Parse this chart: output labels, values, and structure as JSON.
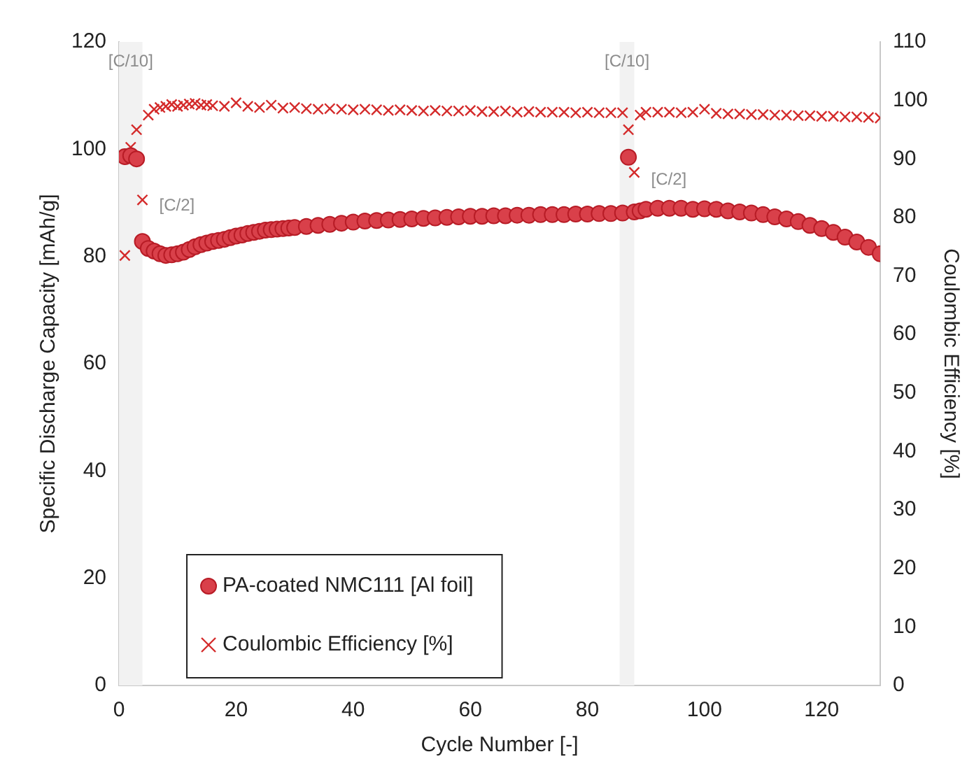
{
  "chart_data": {
    "type": "scatter",
    "xlabel": "Cycle Number [-]",
    "ylabel": "Specific Discharge Capacity [mAh/g]",
    "y2label": "Coulombic Efficiency [%]",
    "xlim": [
      0,
      130
    ],
    "xticks": [
      0,
      20,
      40,
      60,
      80,
      100,
      120
    ],
    "ylim": [
      0,
      120
    ],
    "yticks": [
      0,
      20,
      40,
      60,
      80,
      100,
      120
    ],
    "y2lim": [
      0,
      110
    ],
    "y2ticks": [
      0,
      10,
      20,
      30,
      40,
      50,
      60,
      70,
      80,
      90,
      100,
      110
    ],
    "legend": "bottom left",
    "bands": [
      {
        "axis": "x",
        "from": 0,
        "to": 4,
        "label": "[C/10]",
        "color": "#f2f2f2"
      },
      {
        "axis": "x",
        "from": 85.5,
        "to": 88,
        "label": "[C/10]",
        "color": "#f2f2f2"
      }
    ],
    "annotations": [
      "[C/2]",
      "[C/2]"
    ],
    "series": [
      {
        "name": "PA-coated NMC111 [Al foil]",
        "color": "#d9404a",
        "marker": "circle",
        "x": [
          1,
          2,
          3,
          4,
          5,
          6,
          7,
          8,
          9,
          10,
          11,
          12,
          13,
          14,
          15,
          16,
          17,
          18,
          19,
          20,
          21,
          22,
          23,
          24,
          25,
          26,
          27,
          28,
          29,
          30,
          32,
          34,
          36,
          38,
          40,
          42,
          44,
          46,
          48,
          50,
          52,
          54,
          56,
          58,
          60,
          62,
          64,
          66,
          68,
          70,
          72,
          74,
          76,
          78,
          80,
          82,
          84,
          86,
          87,
          88,
          89,
          90,
          92,
          94,
          96,
          98,
          100,
          102,
          104,
          106,
          108,
          110,
          112,
          114,
          116,
          118,
          120,
          122,
          124,
          126,
          128,
          130
        ],
        "values": [
          98.6,
          98.8,
          98.2,
          82.8,
          81.5,
          81,
          80.5,
          80.2,
          80.3,
          80.5,
          80.8,
          81.3,
          81.8,
          82.2,
          82.5,
          82.8,
          83,
          83.2,
          83.5,
          83.8,
          84,
          84.3,
          84.5,
          84.7,
          84.9,
          85,
          85.1,
          85.2,
          85.3,
          85.4,
          85.6,
          85.8,
          86,
          86.2,
          86.4,
          86.6,
          86.7,
          86.8,
          86.9,
          87,
          87.1,
          87.2,
          87.3,
          87.4,
          87.5,
          87.5,
          87.6,
          87.6,
          87.7,
          87.7,
          87.8,
          87.8,
          87.8,
          87.9,
          87.9,
          88,
          88,
          88.1,
          98.5,
          88.3,
          88.5,
          88.8,
          89,
          89,
          89,
          88.8,
          88.9,
          88.8,
          88.5,
          88.3,
          88.1,
          87.8,
          87.4,
          87,
          86.5,
          85.8,
          85.2,
          84.5,
          83.6,
          82.7,
          81.7,
          80.5
        ]
      },
      {
        "name": "Coulombic Efficiency [%]",
        "color": "#d42a2a",
        "marker": "cross",
        "axis": "y2",
        "x": [
          1,
          2,
          3,
          4,
          5,
          6,
          7,
          8,
          9,
          10,
          11,
          12,
          13,
          14,
          15,
          16,
          18,
          20,
          22,
          24,
          26,
          28,
          30,
          32,
          34,
          36,
          38,
          40,
          42,
          44,
          46,
          48,
          50,
          52,
          54,
          56,
          58,
          60,
          62,
          64,
          66,
          68,
          70,
          72,
          74,
          76,
          78,
          80,
          82,
          84,
          86,
          87,
          88,
          89,
          90,
          92,
          94,
          96,
          98,
          100,
          102,
          104,
          106,
          108,
          110,
          112,
          114,
          116,
          118,
          120,
          122,
          124,
          126,
          128,
          130
        ],
        "values": [
          73.5,
          92,
          95,
          83,
          97.5,
          98.5,
          98.8,
          99,
          99.3,
          99,
          99.2,
          99.4,
          99.5,
          99.2,
          99.3,
          99.1,
          99,
          99.6,
          99,
          98.8,
          99.2,
          98.7,
          98.8,
          98.6,
          98.5,
          98.6,
          98.5,
          98.4,
          98.5,
          98.4,
          98.3,
          98.4,
          98.3,
          98.2,
          98.3,
          98.2,
          98.2,
          98.3,
          98.1,
          98.1,
          98.2,
          98,
          98.1,
          98,
          98,
          98,
          97.9,
          98,
          97.9,
          97.9,
          97.9,
          95,
          87.7,
          97.5,
          98,
          98,
          98,
          97.9,
          98,
          98.5,
          97.8,
          97.7,
          97.7,
          97.6,
          97.6,
          97.5,
          97.5,
          97.4,
          97.4,
          97.3,
          97.3,
          97.2,
          97.2,
          97.1,
          97
        ]
      }
    ]
  }
}
